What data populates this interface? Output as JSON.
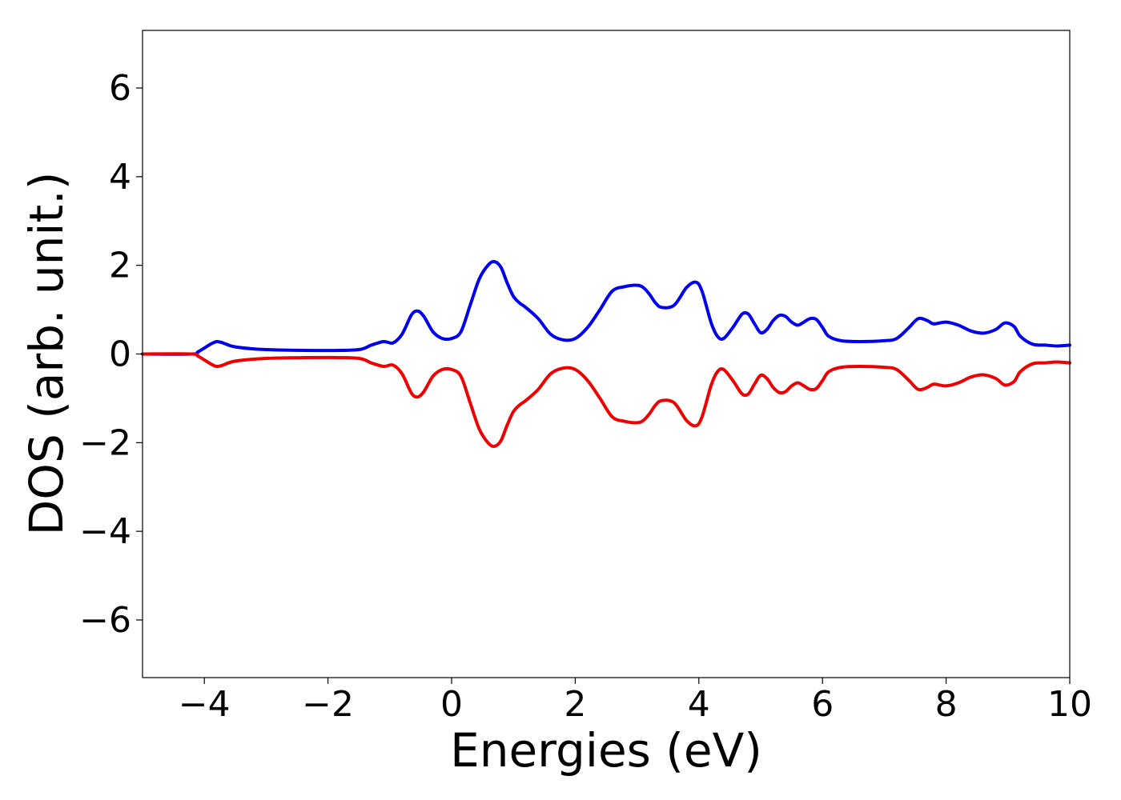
{
  "chart_data": {
    "type": "line",
    "title": "",
    "xlabel": "Energies (eV)",
    "ylabel": "DOS (arb. unit.)",
    "xlim": [
      -5,
      10
    ],
    "ylim": [
      -7.3,
      7.3
    ],
    "xticks": [
      -4,
      -2,
      0,
      2,
      4,
      6,
      8,
      10
    ],
    "yticks": [
      -6,
      -4,
      -2,
      0,
      2,
      4,
      6
    ],
    "xtick_labels": [
      "−4",
      "−2",
      "0",
      "2",
      "4",
      "6",
      "8",
      "10"
    ],
    "ytick_labels": [
      "−6",
      "−4",
      "−2",
      "0",
      "2",
      "4",
      "6"
    ],
    "grid": false,
    "legend": "none",
    "series": [
      {
        "color": "#0000ee",
        "x": [
          -5.0,
          -4.2,
          -4.1,
          -3.9,
          -3.8,
          -3.7,
          -3.5,
          -3.0,
          -2.0,
          -1.5,
          -1.3,
          -1.1,
          -0.95,
          -0.8,
          -0.65,
          -0.55,
          -0.45,
          -0.3,
          -0.15,
          0.0,
          0.15,
          0.3,
          0.45,
          0.6,
          0.7,
          0.8,
          0.9,
          1.0,
          1.1,
          1.2,
          1.4,
          1.6,
          1.8,
          2.0,
          2.2,
          2.4,
          2.6,
          2.8,
          3.0,
          3.1,
          3.2,
          3.3,
          3.4,
          3.6,
          3.8,
          3.95,
          4.05,
          4.2,
          4.3,
          4.4,
          4.55,
          4.7,
          4.8,
          4.9,
          5.0,
          5.1,
          5.2,
          5.3,
          5.4,
          5.5,
          5.6,
          5.7,
          5.8,
          5.9,
          6.0,
          6.1,
          6.3,
          6.6,
          7.0,
          7.2,
          7.4,
          7.55,
          7.7,
          7.8,
          8.0,
          8.2,
          8.4,
          8.6,
          8.8,
          8.95,
          9.1,
          9.2,
          9.4,
          9.6,
          9.8,
          10.0
        ],
        "y": [
          0.0,
          0.0,
          0.05,
          0.22,
          0.28,
          0.25,
          0.16,
          0.1,
          0.08,
          0.1,
          0.2,
          0.28,
          0.25,
          0.45,
          0.88,
          0.97,
          0.85,
          0.5,
          0.35,
          0.35,
          0.5,
          1.1,
          1.7,
          2.02,
          2.08,
          1.95,
          1.6,
          1.3,
          1.15,
          1.05,
          0.8,
          0.45,
          0.32,
          0.35,
          0.6,
          1.0,
          1.42,
          1.52,
          1.55,
          1.5,
          1.35,
          1.15,
          1.05,
          1.1,
          1.5,
          1.62,
          1.42,
          0.7,
          0.4,
          0.35,
          0.6,
          0.9,
          0.9,
          0.68,
          0.48,
          0.55,
          0.75,
          0.87,
          0.85,
          0.72,
          0.65,
          0.72,
          0.8,
          0.78,
          0.6,
          0.4,
          0.3,
          0.28,
          0.3,
          0.35,
          0.6,
          0.8,
          0.75,
          0.68,
          0.72,
          0.65,
          0.52,
          0.47,
          0.55,
          0.7,
          0.62,
          0.4,
          0.22,
          0.2,
          0.18,
          0.2
        ]
      },
      {
        "color": "#ee0000",
        "x": [
          -5.0,
          -4.2,
          -4.1,
          -3.9,
          -3.8,
          -3.7,
          -3.5,
          -3.0,
          -2.0,
          -1.5,
          -1.3,
          -1.1,
          -0.95,
          -0.8,
          -0.65,
          -0.55,
          -0.45,
          -0.3,
          -0.15,
          0.0,
          0.15,
          0.3,
          0.45,
          0.6,
          0.7,
          0.8,
          0.9,
          1.0,
          1.1,
          1.2,
          1.4,
          1.6,
          1.8,
          2.0,
          2.2,
          2.4,
          2.6,
          2.8,
          3.0,
          3.1,
          3.2,
          3.3,
          3.4,
          3.6,
          3.8,
          3.95,
          4.05,
          4.2,
          4.3,
          4.4,
          4.55,
          4.7,
          4.8,
          4.9,
          5.0,
          5.1,
          5.2,
          5.3,
          5.4,
          5.5,
          5.6,
          5.7,
          5.8,
          5.9,
          6.0,
          6.1,
          6.3,
          6.6,
          7.0,
          7.2,
          7.4,
          7.55,
          7.7,
          7.8,
          8.0,
          8.2,
          8.4,
          8.6,
          8.8,
          8.95,
          9.1,
          9.2,
          9.4,
          9.6,
          9.8,
          10.0
        ],
        "y": [
          0.0,
          0.0,
          -0.05,
          -0.22,
          -0.28,
          -0.25,
          -0.16,
          -0.1,
          -0.08,
          -0.1,
          -0.2,
          -0.28,
          -0.25,
          -0.45,
          -0.88,
          -0.97,
          -0.85,
          -0.5,
          -0.35,
          -0.35,
          -0.5,
          -1.1,
          -1.7,
          -2.02,
          -2.08,
          -1.95,
          -1.6,
          -1.3,
          -1.15,
          -1.05,
          -0.8,
          -0.45,
          -0.32,
          -0.35,
          -0.6,
          -1.0,
          -1.42,
          -1.52,
          -1.55,
          -1.5,
          -1.35,
          -1.15,
          -1.05,
          -1.1,
          -1.5,
          -1.62,
          -1.42,
          -0.7,
          -0.4,
          -0.35,
          -0.6,
          -0.9,
          -0.9,
          -0.68,
          -0.48,
          -0.55,
          -0.75,
          -0.87,
          -0.85,
          -0.72,
          -0.65,
          -0.72,
          -0.8,
          -0.78,
          -0.6,
          -0.4,
          -0.3,
          -0.28,
          -0.3,
          -0.35,
          -0.6,
          -0.8,
          -0.75,
          -0.68,
          -0.72,
          -0.65,
          -0.52,
          -0.47,
          -0.55,
          -0.7,
          -0.62,
          -0.4,
          -0.22,
          -0.2,
          -0.18,
          -0.2
        ]
      }
    ]
  }
}
